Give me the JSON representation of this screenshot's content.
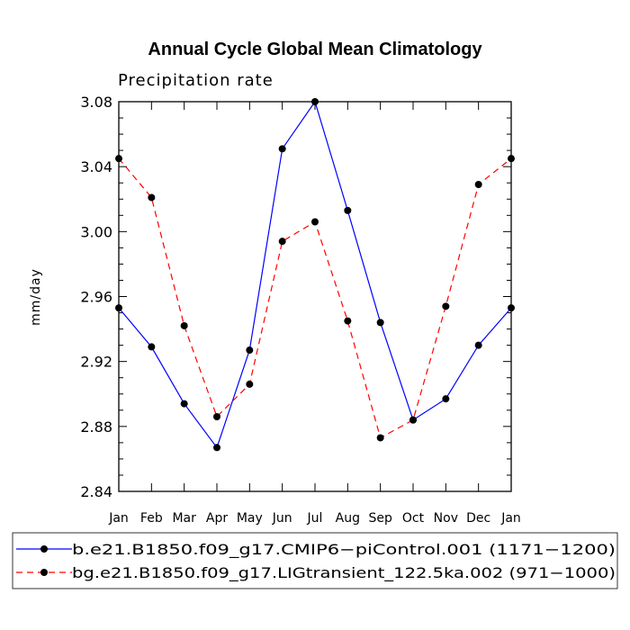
{
  "chart_data": {
    "type": "line",
    "title": "Annual Cycle Global Mean Climatology",
    "subtitle": "Precipitation rate",
    "xlabel": "",
    "ylabel": "mm/day",
    "ylim": [
      2.84,
      3.08
    ],
    "yticks": [
      "2.84",
      "2.88",
      "2.92",
      "2.96",
      "3.00",
      "3.04",
      "3.08"
    ],
    "ytick_values": [
      2.84,
      2.88,
      2.92,
      2.96,
      3.0,
      3.04,
      3.08
    ],
    "categories": [
      "Jan",
      "Feb",
      "Mar",
      "Apr",
      "May",
      "Jun",
      "Jul",
      "Aug",
      "Sep",
      "Oct",
      "Nov",
      "Dec",
      "Jan"
    ],
    "series": [
      {
        "name": "b.e21.B1850.f09_g17.CMIP6−piControl.001 (1171−1200)",
        "color": "#0000ff",
        "style": "solid",
        "values": [
          2.953,
          2.929,
          2.894,
          2.867,
          2.927,
          3.051,
          3.08,
          3.013,
          2.944,
          2.884,
          2.897,
          2.93,
          2.953
        ]
      },
      {
        "name": "bg.e21.B1850.f09_g17.LIGtransient_122.5ka.002 (971−1000)",
        "color": "#ff0000",
        "style": "dashed",
        "values": [
          3.045,
          3.021,
          2.942,
          2.886,
          2.906,
          2.994,
          3.006,
          2.945,
          2.873,
          2.884,
          2.954,
          3.029,
          3.045
        ]
      }
    ],
    "legend_position": "bottom"
  }
}
